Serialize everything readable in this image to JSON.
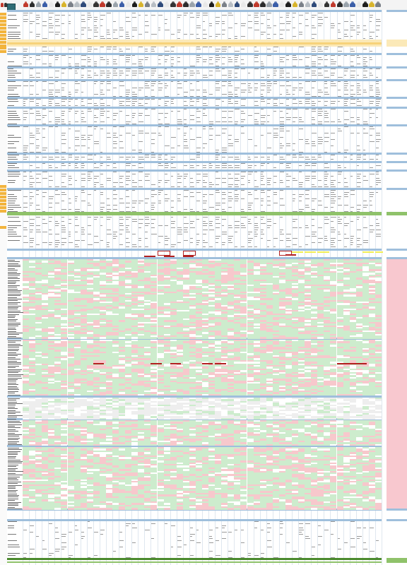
{
  "sheet": {
    "colors": {
      "header_blue": "#9fbfdc",
      "pale_blue": "#dbe7f3",
      "yellow_band": "#f7d27a",
      "yellow_light": "#fbe9b8",
      "green_band": "#8fc26a",
      "green_dark": "#4b8a2e",
      "cell_green": "#cdeccd",
      "cell_pink": "#f7c8cc",
      "cell_white": "#ffffff",
      "dark_red": "#b32020",
      "right_pink": "#f8c8cf",
      "row_label_orange": "#f2b43d",
      "highlight_yellow": "#f2ee55"
    },
    "column_count": 56,
    "right_panel_columns": 4
  }
}
